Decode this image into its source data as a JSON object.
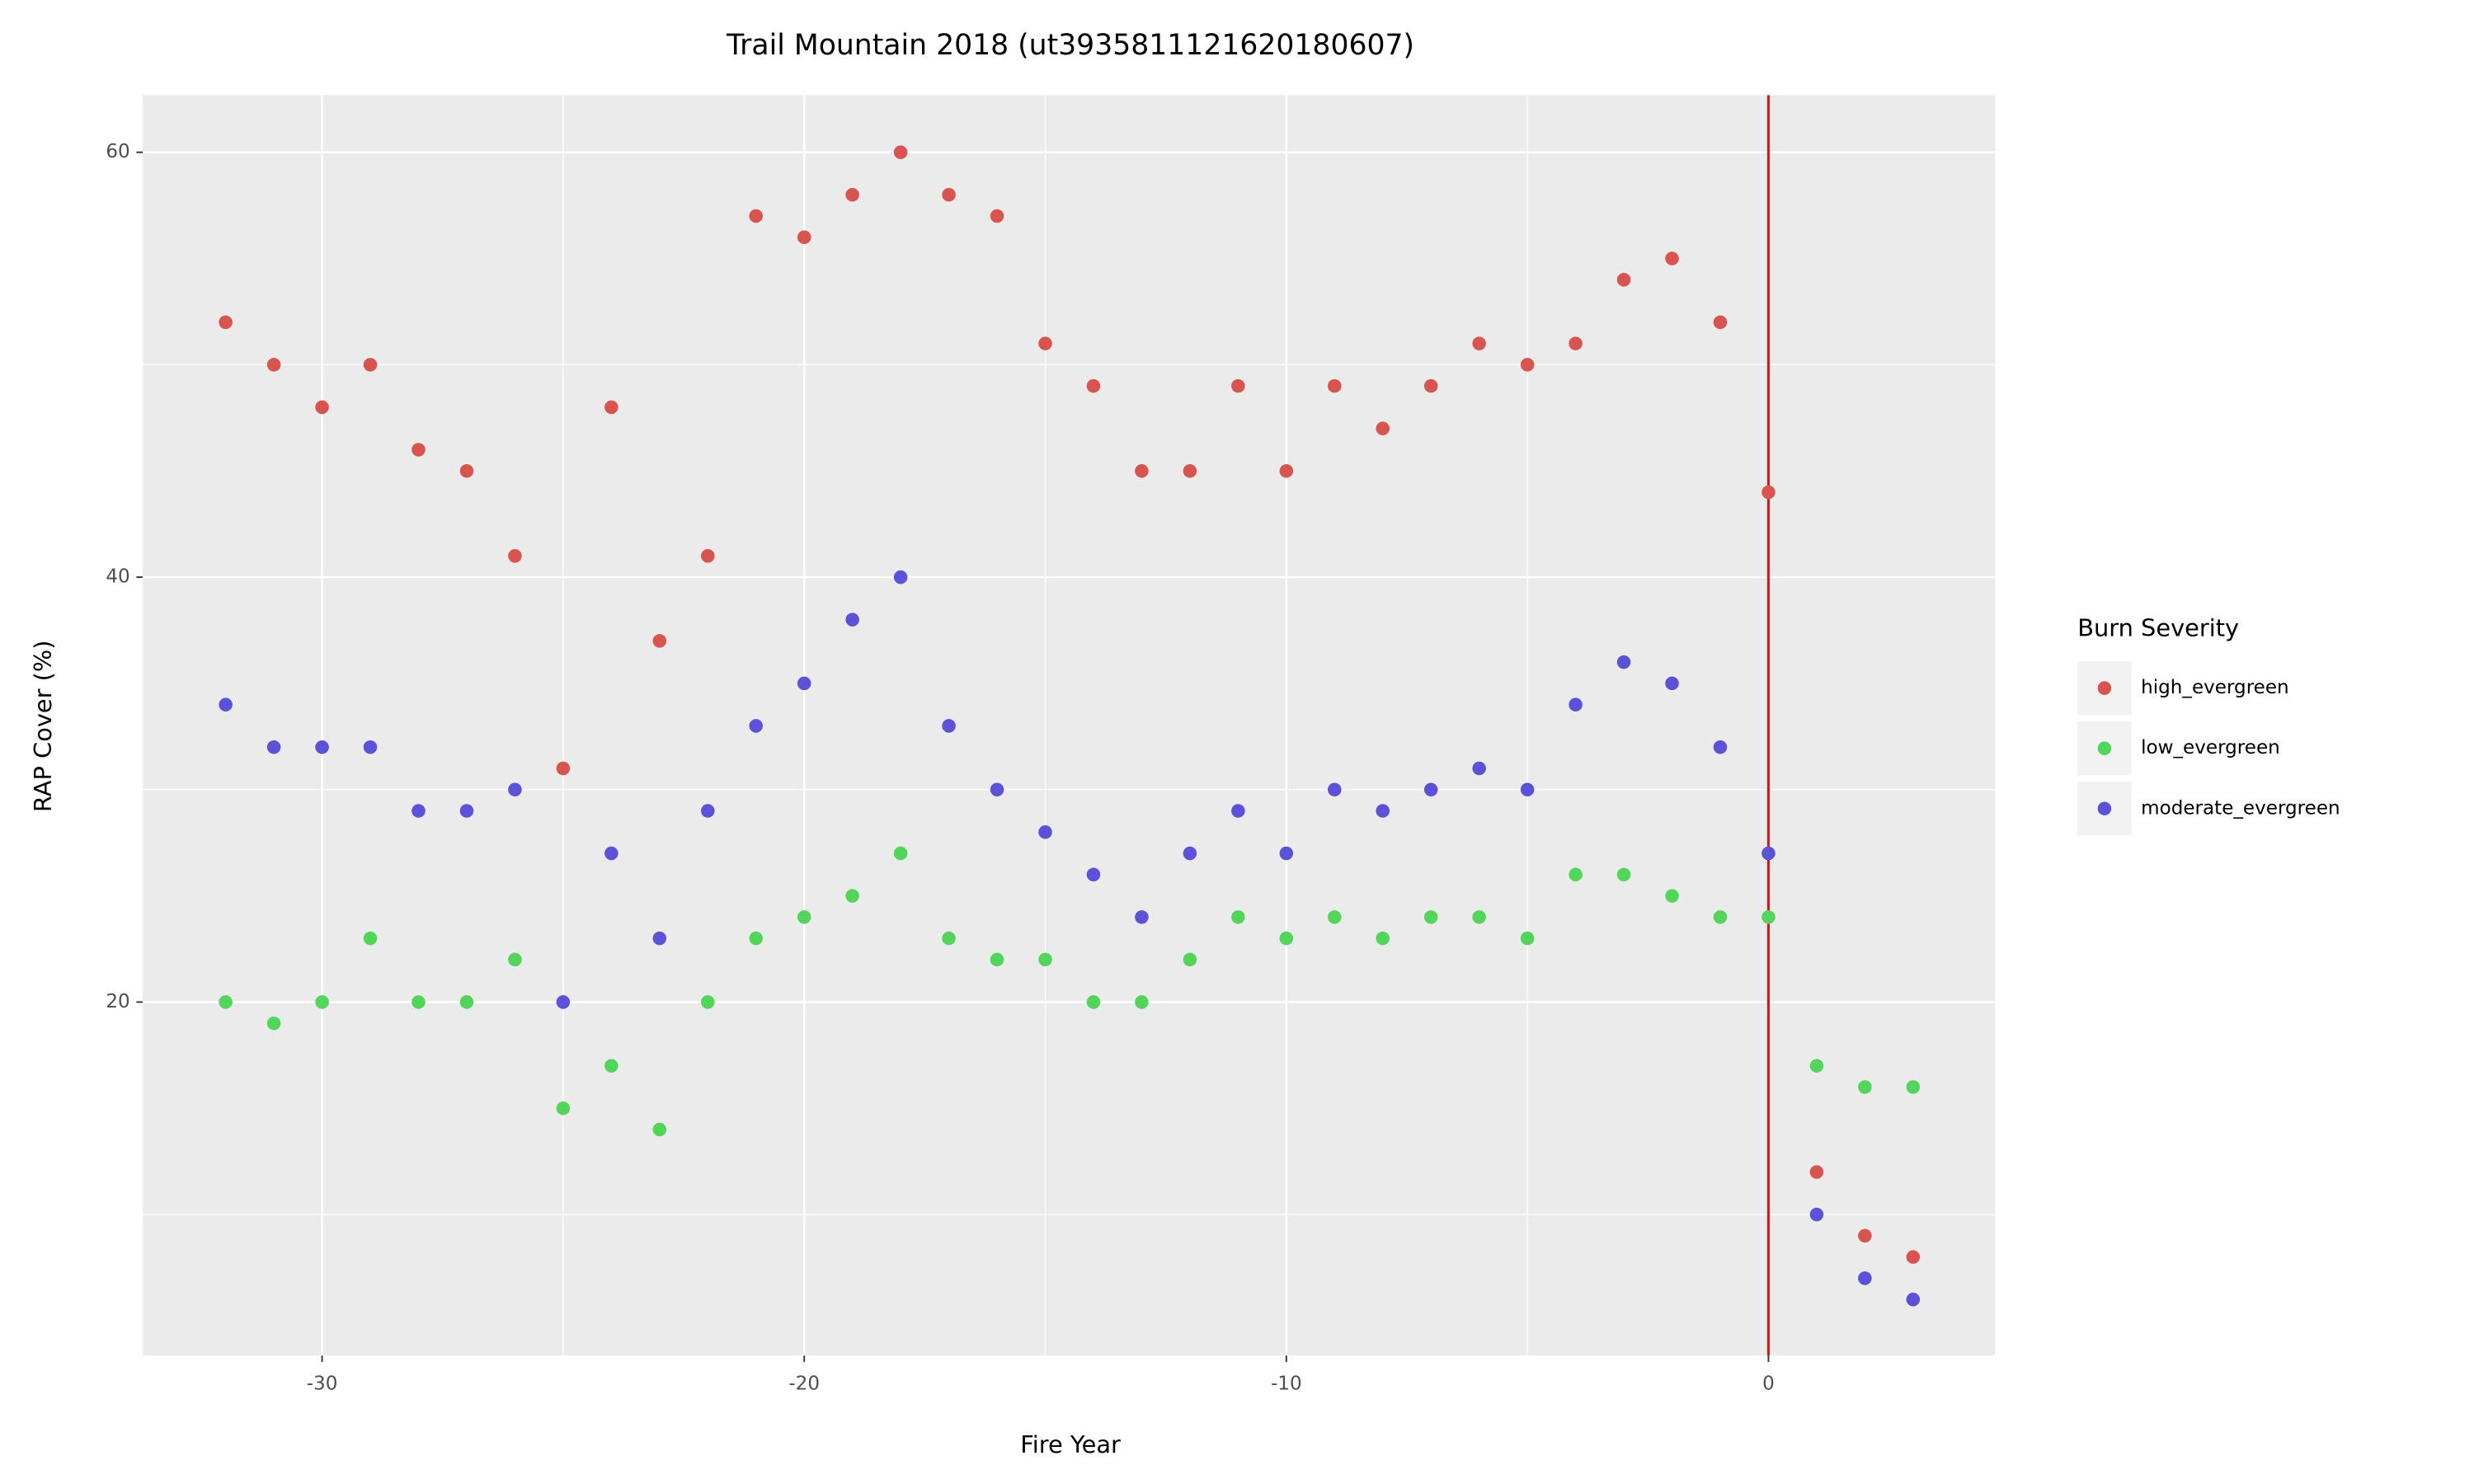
{
  "chart_data": {
    "type": "scatter",
    "title": "Trail Mountain 2018 (ut3935811121620180607)",
    "xlabel": "Fire Year",
    "ylabel": "RAP Cover (%)",
    "x": [
      -32,
      -31,
      -30,
      -29,
      -28,
      -27,
      -26,
      -25,
      -24,
      -23,
      -22,
      -21,
      -20,
      -19,
      -18,
      -17,
      -16,
      -15,
      -14,
      -13,
      -12,
      -11,
      -10,
      -9,
      -8,
      -7,
      -6,
      -5,
      -4,
      -3,
      -2,
      -1,
      0,
      1,
      2,
      3
    ],
    "series": [
      {
        "name": "high_evergreen",
        "color": "#d9534f",
        "values": [
          52,
          50,
          48,
          50,
          46,
          45,
          41,
          31,
          48,
          37,
          41,
          57,
          56,
          58,
          60,
          58,
          57,
          51,
          49,
          45,
          45,
          49,
          45,
          49,
          47,
          49,
          51,
          50,
          51,
          54,
          55,
          52,
          44,
          12,
          9,
          8
        ]
      },
      {
        "name": "low_evergreen",
        "color": "#52d65a",
        "values": [
          20,
          19,
          20,
          23,
          20,
          20,
          22,
          15,
          17,
          14,
          20,
          23,
          24,
          25,
          27,
          23,
          22,
          22,
          20,
          20,
          22,
          24,
          23,
          24,
          23,
          24,
          24,
          23,
          26,
          26,
          25,
          24,
          24,
          17,
          16,
          16
        ]
      },
      {
        "name": "moderate_evergreen",
        "color": "#5b52d9",
        "values": [
          34,
          32,
          32,
          32,
          29,
          29,
          30,
          20,
          27,
          23,
          29,
          33,
          35,
          38,
          40,
          33,
          30,
          28,
          26,
          24,
          27,
          29,
          27,
          30,
          29,
          30,
          31,
          30,
          34,
          36,
          35,
          32,
          27,
          10,
          7,
          6
        ]
      }
    ],
    "xlim": [
      -33.72,
      4.7
    ],
    "ylim": [
      3.36,
      62.69
    ],
    "xticks": [
      -30,
      -20,
      -10,
      0
    ],
    "yticks": [
      20,
      40,
      60
    ],
    "grid": true,
    "vline": {
      "x": 0,
      "color": "#ff0000"
    },
    "legend_title": "Burn Severity",
    "legend": "right"
  }
}
